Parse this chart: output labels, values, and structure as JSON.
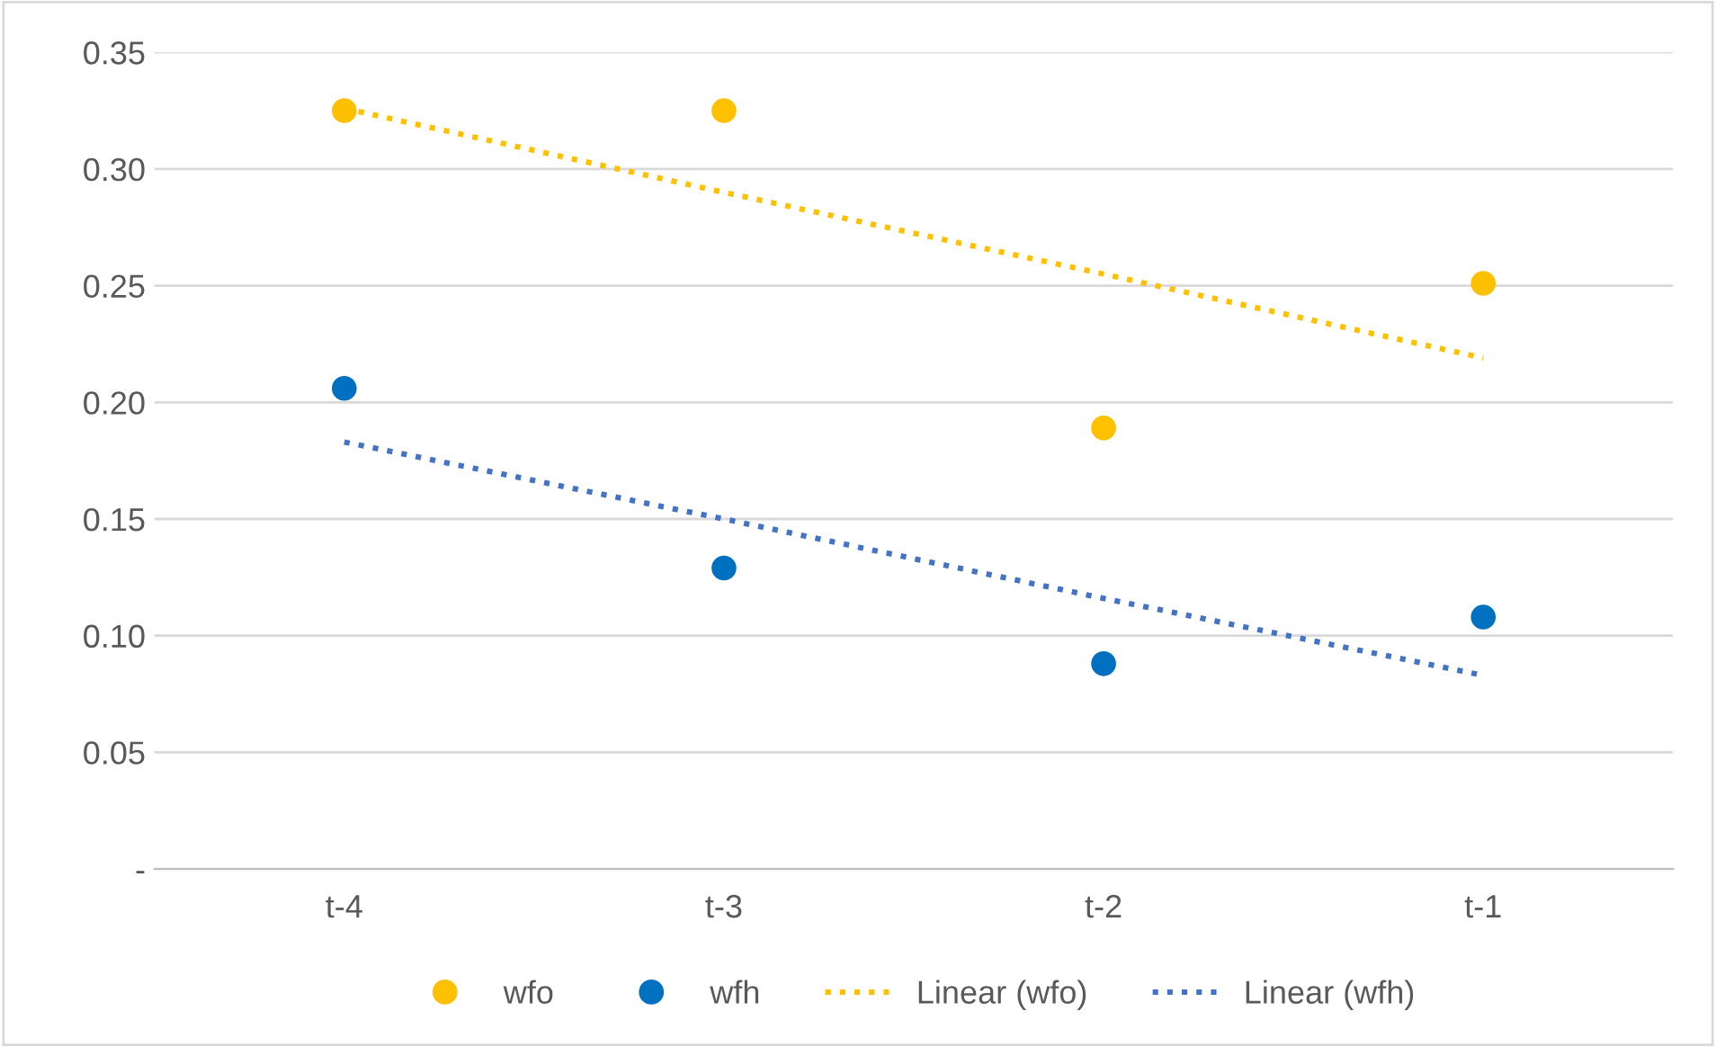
{
  "chart_data": {
    "type": "scatter",
    "categories": [
      "t-4",
      "t-3",
      "t-2",
      "t-1"
    ],
    "series": [
      {
        "name": "wfo",
        "color": "#ffc000",
        "marker": "circle",
        "values": [
          0.325,
          0.325,
          0.189,
          0.251
        ]
      },
      {
        "name": "wfh",
        "color": "#0070c0",
        "marker": "circle",
        "values": [
          0.206,
          0.129,
          0.088,
          0.108
        ]
      },
      {
        "name": "Linear (wfo)",
        "type": "line",
        "color": "#ffc000",
        "line_style": "dotted",
        "values": [
          0.326,
          0.29,
          0.255,
          0.219
        ]
      },
      {
        "name": "Linear (wfh)",
        "type": "line",
        "color": "#4472c4",
        "line_style": "dotted",
        "values": [
          0.183,
          0.15,
          0.116,
          0.083
        ]
      }
    ],
    "ylim": [
      0,
      0.35
    ],
    "yticks": [
      {
        "value": 0,
        "label": "-"
      },
      {
        "value": 0.05,
        "label": "0.05"
      },
      {
        "value": 0.1,
        "label": "0.10"
      },
      {
        "value": 0.15,
        "label": "0.15"
      },
      {
        "value": 0.2,
        "label": "0.20"
      },
      {
        "value": 0.25,
        "label": "0.25"
      },
      {
        "value": 0.3,
        "label": "0.30"
      },
      {
        "value": 0.35,
        "label": "0.35"
      }
    ],
    "grid": "y",
    "legend": "bottom"
  }
}
